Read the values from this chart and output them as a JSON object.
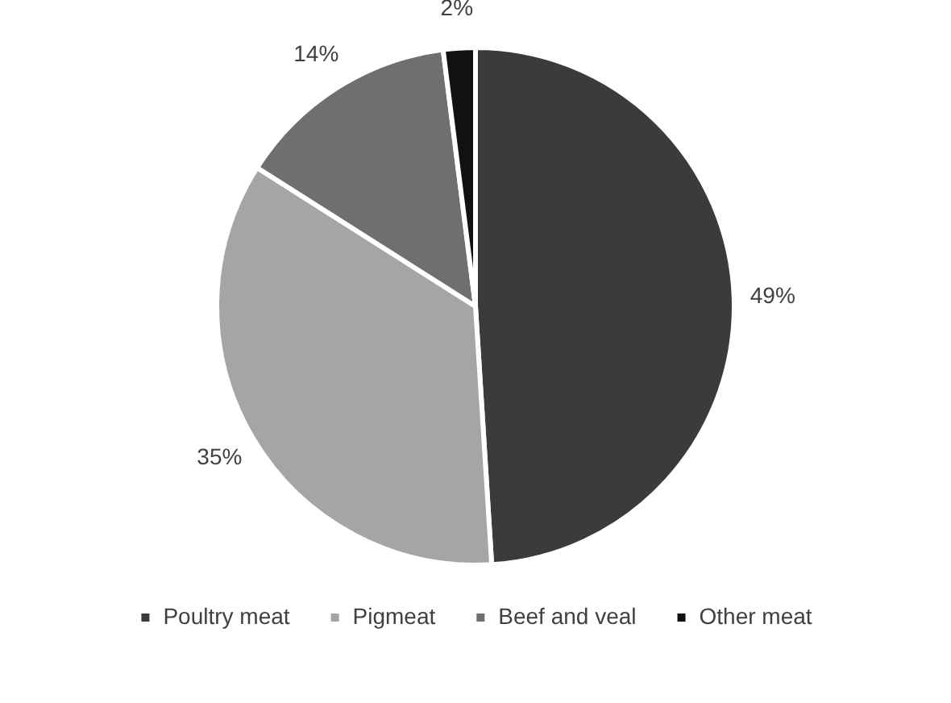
{
  "chart_data": {
    "type": "pie",
    "categories": [
      "Poultry meat",
      "Pigmeat",
      "Beef and veal",
      "Other meat"
    ],
    "values": [
      49,
      35,
      14,
      2
    ],
    "colors": [
      "#3b3b3b",
      "#a5a5a5",
      "#6f6f6f",
      "#111111"
    ],
    "value_labels": [
      "49%",
      "35%",
      "14%",
      "2%"
    ],
    "legend": "bottom"
  }
}
